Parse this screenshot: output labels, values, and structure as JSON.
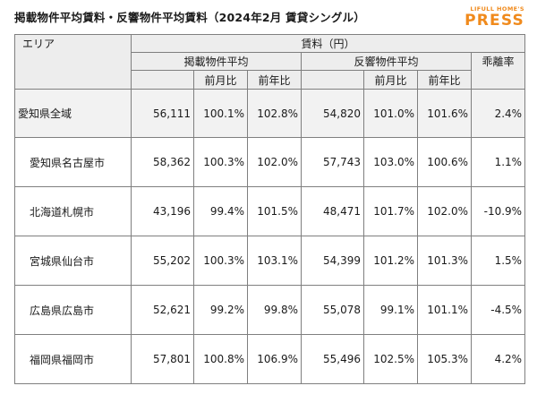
{
  "header": {
    "title": "掲載物件平均賃料・反響物件平均賃料（2024年2月 賃貸シングル）",
    "logo_top": "LIFULL HOME'S",
    "logo_main": "PRESS"
  },
  "table": {
    "area_label": "エリア",
    "rent_label": "賃料（円）",
    "listed_label": "掲載物件平均",
    "response_label": "反響物件平均",
    "gap_label": "乖離率",
    "mom_label": "前月比",
    "yoy_label": "前年比",
    "rows": [
      {
        "area": "愛知県全域",
        "listed": "56,111",
        "listed_mom": "100.1%",
        "listed_yoy": "102.8%",
        "resp": "54,820",
        "resp_mom": "101.0%",
        "resp_yoy": "101.6%",
        "gap": "2.4%"
      },
      {
        "area": "愛知県名古屋市",
        "listed": "58,362",
        "listed_mom": "100.3%",
        "listed_yoy": "102.0%",
        "resp": "57,743",
        "resp_mom": "103.0%",
        "resp_yoy": "100.6%",
        "gap": "1.1%"
      },
      {
        "area": "北海道札幌市",
        "listed": "43,196",
        "listed_mom": "99.4%",
        "listed_yoy": "101.5%",
        "resp": "48,471",
        "resp_mom": "101.7%",
        "resp_yoy": "102.0%",
        "gap": "-10.9%"
      },
      {
        "area": "宮城県仙台市",
        "listed": "55,202",
        "listed_mom": "100.3%",
        "listed_yoy": "103.1%",
        "resp": "54,399",
        "resp_mom": "101.2%",
        "resp_yoy": "101.3%",
        "gap": "1.5%"
      },
      {
        "area": "広島県広島市",
        "listed": "52,621",
        "listed_mom": "99.2%",
        "listed_yoy": "99.8%",
        "resp": "55,078",
        "resp_mom": "99.1%",
        "resp_yoy": "101.1%",
        "gap": "-4.5%"
      },
      {
        "area": "福岡県福岡市",
        "listed": "57,801",
        "listed_mom": "100.8%",
        "listed_yoy": "106.9%",
        "resp": "55,496",
        "resp_mom": "102.5%",
        "resp_yoy": "105.3%",
        "gap": "4.2%"
      }
    ]
  }
}
